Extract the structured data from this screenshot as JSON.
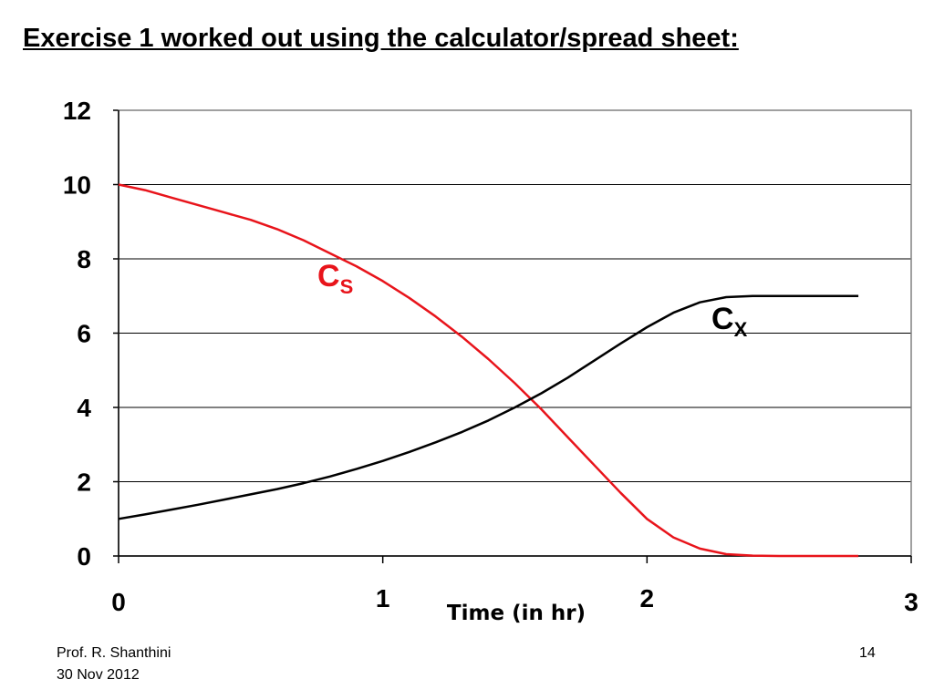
{
  "slide": {
    "title": "Exercise 1 worked out using the calculator/spread sheet:",
    "footer_author": "Prof. R. Shanthini",
    "footer_date": "30 Nov 2012",
    "page_number": "14"
  },
  "chart_data": {
    "type": "line",
    "title": "",
    "xlabel": "Time (in hr)",
    "ylabel": "",
    "xlim": [
      0,
      3
    ],
    "ylim": [
      0,
      12
    ],
    "x_ticks": [
      "0",
      "1",
      "2",
      "3"
    ],
    "y_ticks": [
      "0",
      "2",
      "4",
      "6",
      "8",
      "10",
      "12"
    ],
    "grid": "horizontal",
    "series": [
      {
        "label_main": "C",
        "label_sub": "S",
        "color": "#e8141b",
        "x": [
          0,
          0.1,
          0.2,
          0.3,
          0.4,
          0.5,
          0.6,
          0.7,
          0.8,
          0.9,
          1.0,
          1.1,
          1.2,
          1.3,
          1.4,
          1.5,
          1.6,
          1.7,
          1.8,
          1.9,
          2.0,
          2.1,
          2.2,
          2.3,
          2.4,
          2.5,
          2.6,
          2.7,
          2.8
        ],
        "y": [
          10,
          9.85,
          9.65,
          9.45,
          9.25,
          9.05,
          8.8,
          8.5,
          8.15,
          7.8,
          7.4,
          6.95,
          6.45,
          5.9,
          5.3,
          4.65,
          3.95,
          3.2,
          2.45,
          1.7,
          1.0,
          0.5,
          0.2,
          0.05,
          0.01,
          0,
          0,
          0,
          0
        ]
      },
      {
        "label_main": "C",
        "label_sub": "X",
        "color": "#000000",
        "x": [
          0,
          0.1,
          0.2,
          0.3,
          0.4,
          0.5,
          0.6,
          0.7,
          0.8,
          0.9,
          1.0,
          1.1,
          1.2,
          1.3,
          1.4,
          1.5,
          1.6,
          1.7,
          1.8,
          1.9,
          2.0,
          2.1,
          2.2,
          2.3,
          2.4,
          2.5,
          2.6,
          2.7,
          2.8
        ],
        "y": [
          1.0,
          1.12,
          1.25,
          1.38,
          1.52,
          1.66,
          1.8,
          1.96,
          2.14,
          2.34,
          2.56,
          2.8,
          3.06,
          3.34,
          3.65,
          4.0,
          4.38,
          4.8,
          5.26,
          5.72,
          6.16,
          6.55,
          6.83,
          6.97,
          7.0,
          7.0,
          7.0,
          7.0,
          7.0
        ]
      }
    ]
  }
}
